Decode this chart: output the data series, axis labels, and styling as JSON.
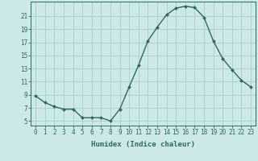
{
  "x": [
    0,
    1,
    2,
    3,
    4,
    5,
    6,
    7,
    8,
    9,
    10,
    11,
    12,
    13,
    14,
    15,
    16,
    17,
    18,
    19,
    20,
    21,
    22,
    23
  ],
  "y": [
    8.8,
    7.8,
    7.2,
    6.8,
    6.8,
    5.5,
    5.5,
    5.5,
    5.0,
    6.8,
    10.2,
    13.5,
    17.2,
    19.3,
    21.2,
    22.2,
    22.5,
    22.3,
    20.8,
    17.2,
    14.5,
    12.8,
    11.2,
    10.2
  ],
  "line_color": "#2e6b5e",
  "marker": "D",
  "marker_size": 2.0,
  "line_width": 1.0,
  "xlabel": "Humidex (Indice chaleur)",
  "xlabel_fontsize": 6.5,
  "yticks": [
    5,
    7,
    9,
    11,
    13,
    15,
    17,
    19,
    21
  ],
  "xticks": [
    0,
    1,
    2,
    3,
    4,
    5,
    6,
    7,
    8,
    9,
    10,
    11,
    12,
    13,
    14,
    15,
    16,
    17,
    18,
    19,
    20,
    21,
    22,
    23
  ],
  "ylim": [
    4.3,
    23.2
  ],
  "xlim": [
    -0.5,
    23.5
  ],
  "bg_color": "#cde8e8",
  "grid_color": "#aacccc",
  "tick_fontsize": 5.5,
  "font_family": "monospace"
}
